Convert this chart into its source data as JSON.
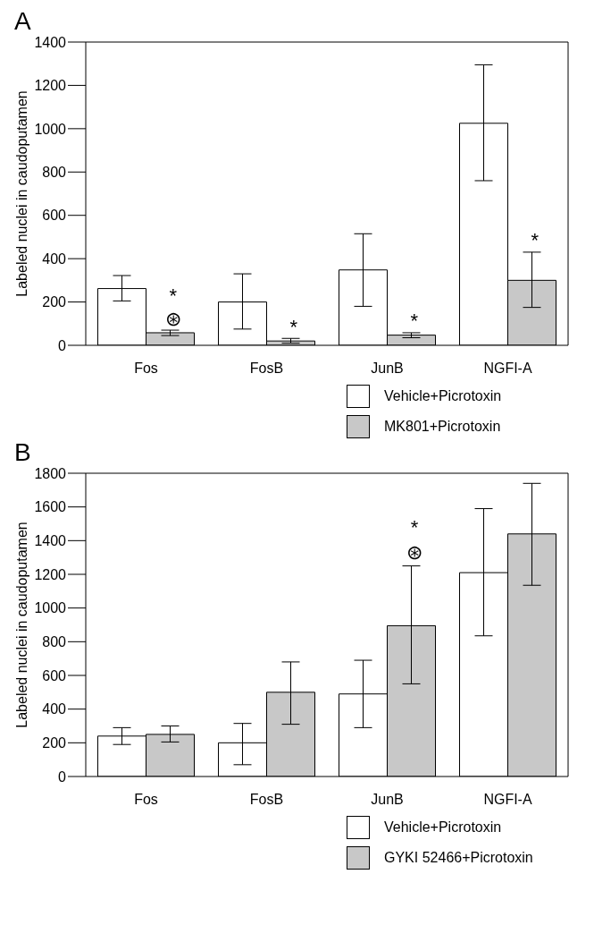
{
  "chart_data": [
    {
      "type": "bar",
      "title": "A",
      "ylabel": "Labeled nuclei in caudoputamen",
      "categories": [
        "Fos",
        "FosB",
        "JunB",
        "NGFI-A"
      ],
      "series": [
        {
          "name": "Vehicle+Picrotoxin",
          "color": "#ffffff",
          "values": [
            262,
            200,
            348,
            1025
          ],
          "errors": [
            [
              205,
              322
            ],
            [
              75,
              330
            ],
            [
              180,
              515
            ],
            [
              760,
              1295
            ]
          ]
        },
        {
          "name": "MK801+Picrotoxin",
          "color": "#c8c8c8",
          "values": [
            58,
            20,
            47,
            300
          ],
          "errors": [
            [
              45,
              70
            ],
            [
              10,
              32
            ],
            [
              35,
              58
            ],
            [
              175,
              430
            ]
          ]
        }
      ],
      "ylim": [
        0,
        1400
      ],
      "yticks": [
        0,
        200,
        400,
        600,
        800,
        1000,
        1200,
        1400
      ],
      "grid": false,
      "legend": "bottom",
      "annotations": [
        {
          "text": "⊛",
          "x": "Fos",
          "y": 58
        },
        {
          "text": "*",
          "x": "Fos",
          "y": 58
        },
        {
          "text": "*",
          "x": "FosB",
          "y": 20
        },
        {
          "text": "*",
          "x": "JunB",
          "y": 47
        },
        {
          "text": "*",
          "x": "NGFI-A",
          "y": 300
        }
      ]
    },
    {
      "type": "bar",
      "title": "B",
      "ylabel": "Labeled nuclei in caudoputamen",
      "categories": [
        "Fos",
        "FosB",
        "JunB",
        "NGFI-A"
      ],
      "series": [
        {
          "name": "Vehicle+Picrotoxin",
          "color": "#ffffff",
          "values": [
            240,
            200,
            490,
            1210
          ],
          "errors": [
            [
              190,
              290
            ],
            [
              70,
              315
            ],
            [
              290,
              690
            ],
            [
              835,
              1590
            ]
          ]
        },
        {
          "name": "GYKI 52466+Picrotoxin",
          "color": "#c8c8c8",
          "values": [
            250,
            500,
            895,
            1440
          ],
          "errors": [
            [
              205,
              300
            ],
            [
              310,
              680
            ],
            [
              550,
              1250
            ],
            [
              1135,
              1740
            ]
          ]
        }
      ],
      "ylim": [
        0,
        1800
      ],
      "yticks": [
        0,
        200,
        400,
        600,
        800,
        1000,
        1200,
        1400,
        1600,
        1800
      ],
      "grid": false,
      "legend": "bottom",
      "annotations": [
        "⊛",
        "*"
      ]
    }
  ]
}
